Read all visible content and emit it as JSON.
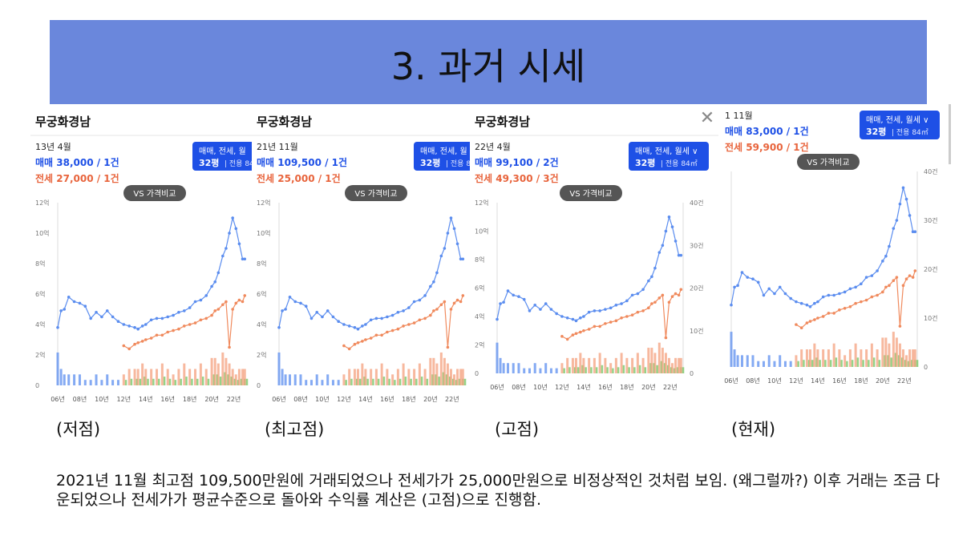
{
  "slide": {
    "title": "3. 과거 시세",
    "description": "2021년 11월 최고점 109,500만원에 거래되었으나 전세가가 25,000만원으로 비정상적인 것처럼 보임. (왜그럴까?) 이후 거래는 조금 다운되었으나 전세가가 평균수준으로 돌아와 수익률 계산은 (고점)으로 진행함.",
    "captions": [
      "(저점)",
      "(최고점)",
      "(고점)",
      "(현재)"
    ]
  },
  "colors": {
    "banner": "#6a87dc",
    "sale": "#5b8def",
    "jeonse": "#f08a5d",
    "badge_bg": "#1e50e6",
    "vs_button": "#555555",
    "rent_bar": "#7cc86a"
  },
  "panels": [
    {
      "complex": "무궁화경남",
      "date": "13년 4월",
      "sale_label": "매매 38,000 / 1건",
      "jeonse_label": "전세 27,000 / 1건",
      "filter_label": "매매, 전세, 월",
      "size_label": "32평",
      "area_label": "전용 84"
    },
    {
      "complex": "무궁화경남",
      "date": "21년 11월",
      "sale_label": "매매 109,500 / 1건",
      "jeonse_label": "전세 25,000 / 1건",
      "filter_label": "매매, 전세, 월",
      "size_label": "32평",
      "area_label": "전용 84"
    },
    {
      "complex": "무궁화경남",
      "date": "22년 4월",
      "sale_label": "매매 99,100 / 2건",
      "jeonse_label": "전세 49,300 / 3건",
      "filter_label": "매매, 전세, 월세",
      "size_label": "32평",
      "area_label": "전용 84㎡"
    },
    {
      "complex": "",
      "date": "1 11월",
      "sale_label": "매매 83,000 / 1건",
      "jeonse_label": "전세 59,900 / 1건",
      "filter_label": "매매, 전세, 월세",
      "size_label": "32평",
      "area_label": "전용 84㎡"
    }
  ],
  "vs_label": "VS 가격비교",
  "chart_data": {
    "type": "line",
    "x_ticks": [
      "06년",
      "08년",
      "10년",
      "12년",
      "14년",
      "16년",
      "18년",
      "20년",
      "22년"
    ],
    "y_left_ticks": [
      "0",
      "2억",
      "4억",
      "6억",
      "8억",
      "10억",
      "12억"
    ],
    "y_right_ticks": [
      "0",
      "10건",
      "20건",
      "30건",
      "40건"
    ],
    "ylim": [
      0,
      12
    ],
    "x": [
      2006.0,
      2006.3,
      2006.6,
      2007.0,
      2007.5,
      2008.0,
      2008.5,
      2009.0,
      2009.5,
      2010.0,
      2010.5,
      2011.0,
      2011.5,
      2012.0,
      2012.5,
      2013.0,
      2013.3,
      2013.7,
      2014.0,
      2014.5,
      2015.0,
      2015.5,
      2016.0,
      2016.5,
      2017.0,
      2017.5,
      2018.0,
      2018.5,
      2019.0,
      2019.5,
      2020.0,
      2020.3,
      2020.6,
      2021.0,
      2021.3,
      2021.6,
      2021.9,
      2022.2,
      2022.5,
      2022.8,
      2023.0
    ],
    "series": [
      {
        "name": "매매",
        "values": [
          3.8,
          4.9,
          5.0,
          5.8,
          5.5,
          5.4,
          5.2,
          4.4,
          4.8,
          4.5,
          4.9,
          4.5,
          4.2,
          4.0,
          3.9,
          3.8,
          3.7,
          3.9,
          4.0,
          4.3,
          4.4,
          4.4,
          4.5,
          4.6,
          4.8,
          4.9,
          5.1,
          5.5,
          5.6,
          5.9,
          6.5,
          6.8,
          7.4,
          8.5,
          9.0,
          10.0,
          11.0,
          10.3,
          9.3,
          8.3,
          8.3
        ]
      },
      {
        "name": "전세",
        "values": [
          null,
          null,
          null,
          null,
          null,
          null,
          null,
          null,
          null,
          null,
          null,
          null,
          null,
          2.6,
          2.4,
          2.7,
          2.8,
          2.9,
          3.0,
          3.1,
          3.3,
          3.3,
          3.5,
          3.6,
          3.7,
          3.9,
          4.0,
          4.1,
          4.3,
          4.4,
          4.6,
          4.9,
          5.0,
          5.3,
          5.5,
          2.5,
          5.0,
          5.4,
          5.6,
          5.5,
          5.9
        ]
      }
    ],
    "volume_bars": [
      6,
      3,
      2,
      2,
      2,
      2,
      1,
      1,
      2,
      1,
      2,
      1,
      1,
      2,
      3,
      3,
      3,
      4,
      3,
      3,
      3,
      4,
      3,
      2,
      3,
      4,
      3,
      3,
      4,
      3,
      5,
      5,
      4,
      6,
      5,
      4,
      3,
      2,
      3,
      3,
      3
    ]
  }
}
